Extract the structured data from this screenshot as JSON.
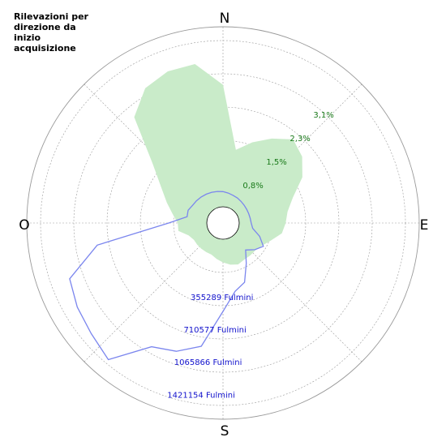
{
  "chart_data": {
    "type": "polar",
    "title": "Rilevazioni per\ndirezione da\ninizio\nacquisizione",
    "directions": [
      "N",
      "E",
      "S",
      "O"
    ],
    "grid": true,
    "percent_ticks": [
      "0,8%",
      "1,5%",
      "2,3%",
      "3,1%"
    ],
    "count_ticks": [
      "355289 Fulmini",
      "710577 Fulmini",
      "1065866 Fulmini",
      "1421154 Fulmini"
    ],
    "colors": {
      "percent_fill": "#c9ebc9",
      "percent_text": "#1a7a1a",
      "count_line": "#7b86ee",
      "count_text": "#1111cc",
      "grid": "#9a9a9a"
    },
    "series": [
      {
        "name": "",
        "unit": "percent",
        "rmax": 3.1,
        "azimuth_deg": [
          0,
          10,
          20,
          30,
          40,
          50,
          60,
          70,
          80,
          90,
          100,
          110,
          120,
          130,
          140,
          150,
          160,
          170,
          180,
          190,
          200,
          210,
          220,
          230,
          240,
          250,
          260,
          270,
          280,
          290,
          300,
          310,
          320,
          330,
          340,
          350
        ],
        "values": [
          2.1,
          1.0,
          1.2,
          1.4,
          1.6,
          1.5,
          1.3,
          1.0,
          0.85,
          0.8,
          0.75,
          0.6,
          0.5,
          0.45,
          0.45,
          0.45,
          0.48,
          0.45,
          0.4,
          0.35,
          0.3,
          0.3,
          0.3,
          0.3,
          0.3,
          0.35,
          0.5,
          0.5,
          0.6,
          0.75,
          0.95,
          1.3,
          2.1,
          2.4,
          2.5,
          2.5
        ]
      },
      {
        "name": "",
        "unit": "count",
        "rmax": 1421154,
        "azimuth_deg": [
          0,
          10,
          20,
          30,
          40,
          50,
          60,
          70,
          80,
          90,
          100,
          110,
          120,
          130,
          140,
          150,
          160,
          170,
          180,
          190,
          200,
          210,
          220,
          230,
          240,
          250,
          260,
          270,
          280,
          290,
          300,
          310,
          320,
          330,
          340,
          350
        ],
        "values": [
          120000,
          112000,
          104000,
          100000,
          94000,
          90000,
          88000,
          88000,
          90000,
          95000,
          110000,
          180000,
          240000,
          200000,
          150000,
          240000,
          370000,
          420000,
          570000,
          860000,
          950000,
          1000000,
          1280000,
          1230000,
          1200000,
          1160000,
          880000,
          300000,
          160000,
          165000,
          150000,
          145000,
          140000,
          135000,
          130000,
          125000
        ]
      }
    ]
  }
}
